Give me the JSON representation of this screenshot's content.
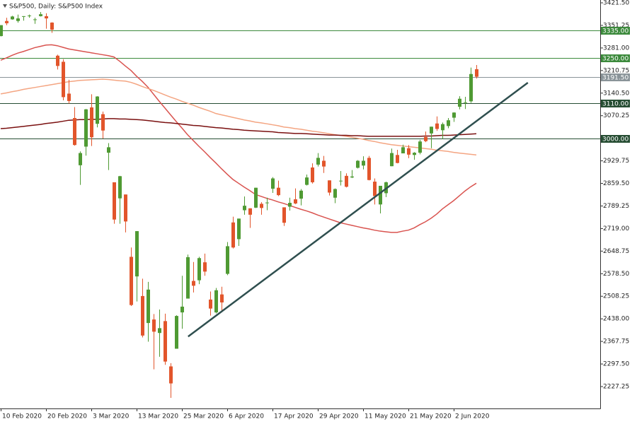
{
  "chart_data": {
    "type": "candlestick",
    "title": "S&P500, Daily:  S&P500 Index",
    "categories": [
      "10 Feb 2020",
      null,
      null,
      null,
      null,
      null,
      null,
      null,
      "20 Feb 2020",
      null,
      null,
      null,
      null,
      null,
      null,
      null,
      "3 Mar 2020",
      null,
      null,
      null,
      null,
      null,
      null,
      null,
      "13 Mar 2020",
      null,
      null,
      null,
      null,
      null,
      null,
      null,
      "25 Mar 2020",
      null,
      null,
      null,
      null,
      null,
      null,
      null,
      "6 Apr 2020",
      null,
      null,
      null,
      null,
      null,
      null,
      null,
      "17 Apr 2020",
      null,
      null,
      null,
      null,
      null,
      null,
      null,
      "29 Apr 2020",
      null,
      null,
      null,
      null,
      null,
      null,
      null,
      "11 May 2020",
      null,
      null,
      null,
      null,
      null,
      null,
      null,
      "21 May 2020",
      null,
      null,
      null,
      null,
      null,
      null,
      null,
      "2 Jun 2020",
      null,
      null,
      null,
      null
    ],
    "open": [
      3318,
      3365,
      3370,
      3365,
      3378,
      3380,
      3370,
      3380,
      3380,
      3360,
      3257,
      3238,
      3139,
      3063,
      2916,
      2974,
      3096,
      3045,
      3075,
      2955,
      2863,
      2813,
      2825,
      2631,
      2570,
      2509,
      2425,
      2436,
      2394,
      2431,
      2290,
      2345,
      2458,
      2501,
      2556,
      2558,
      2614,
      2498,
      2458,
      2514,
      2578,
      2738,
      2686,
      2776,
      2782,
      2784,
      2796,
      2800,
      2843,
      2846,
      2785,
      2787,
      2810,
      2812,
      2855,
      2909,
      2918,
      2930,
      2869,
      2815,
      2868,
      2883,
      2878,
      2908,
      2915,
      2939,
      2865,
      2794,
      2829,
      2913,
      2948,
      2953,
      2969,
      2948,
      2955,
      3004,
      3015,
      3046,
      3025,
      3038,
      3064,
      3098,
      3112,
      3115,
      3215
    ],
    "high": [
      3352,
      3375,
      3381,
      3385,
      3380,
      3385,
      3375,
      3393,
      3389,
      3361,
      3260,
      3246,
      3182,
      3097,
      2959,
      3091,
      3137,
      3131,
      3083,
      2985,
      2863,
      2883,
      2825,
      2660,
      2711,
      2563,
      2553,
      2453,
      2467,
      2454,
      2300,
      2449,
      2572,
      2638,
      2615,
      2631,
      2641,
      2523,
      2534,
      2538,
      2677,
      2756,
      2750,
      2819,
      2782,
      2846,
      2801,
      2815,
      2879,
      2868,
      2785,
      2815,
      2844,
      2842,
      2887,
      2922,
      2954,
      2945,
      2869,
      2844,
      2898,
      2891,
      2901,
      2932,
      2944,
      2945,
      2875,
      2852,
      2865,
      2968,
      2964,
      2980,
      2979,
      2957,
      2995,
      3021,
      3036,
      3068,
      3049,
      3063,
      3081,
      3131,
      3129,
      3220,
      3228
    ],
    "low": [
      3317,
      3352,
      3369,
      3360,
      3366,
      3375,
      3356,
      3379,
      3341,
      3328,
      3214,
      3118,
      3108,
      2977,
      2855,
      2946,
      2976,
      3034,
      2999,
      2901,
      2734,
      2734,
      2707,
      2478,
      2492,
      2380,
      2367,
      2281,
      2320,
      2295,
      2192,
      2345,
      2407,
      2501,
      2520,
      2546,
      2572,
      2448,
      2455,
      2459,
      2574,
      2657,
      2665,
      2762,
      2721,
      2783,
      2762,
      2776,
      2830,
      2820,
      2727,
      2775,
      2795,
      2791,
      2853,
      2859,
      2912,
      2892,
      2822,
      2798,
      2853,
      2847,
      2876,
      2906,
      2903,
      2869,
      2794,
      2766,
      2817,
      2913,
      2922,
      2953,
      2938,
      2933,
      2950,
      2988,
      2969,
      3023,
      2998,
      3031,
      3051,
      3090,
      3091,
      3110,
      3186
    ],
    "close": [
      3352,
      3358,
      3379,
      3373,
      3380,
      3382,
      3370,
      3386,
      3373,
      3338,
      3225,
      3128,
      3116,
      2979,
      2954,
      3090,
      3003,
      3130,
      3024,
      2972,
      2747,
      2882,
      2741,
      2481,
      2711,
      2386,
      2529,
      2398,
      2409,
      2305,
      2237,
      2447,
      2476,
      2630,
      2541,
      2627,
      2585,
      2470,
      2527,
      2489,
      2664,
      2660,
      2750,
      2790,
      2762,
      2846,
      2783,
      2800,
      2875,
      2823,
      2737,
      2799,
      2797,
      2837,
      2878,
      2863,
      2939,
      2912,
      2831,
      2842,
      2868,
      2849,
      2881,
      2930,
      2930,
      2870,
      2820,
      2852,
      2863,
      2954,
      2923,
      2972,
      2949,
      2955,
      2990,
      2991,
      3036,
      3029,
      3044,
      3056,
      3080,
      3123,
      3112,
      3200,
      3191.5
    ],
    "up_color": "#4f9a33",
    "down_color": "#e2552b",
    "moving_averages": [
      {
        "color": "#d9534f",
        "values": [
          3243,
          3250,
          3258,
          3265,
          3270,
          3276,
          3282,
          3286,
          3290,
          3291,
          3288,
          3283,
          3278,
          3275,
          3272,
          3269,
          3266,
          3263,
          3260,
          3257,
          3253,
          3240,
          3225,
          3211,
          3193,
          3177,
          3159,
          3137,
          3115,
          3094,
          3073,
          3052,
          3032,
          3011,
          2993,
          2975,
          2958,
          2940,
          2923,
          2905,
          2888,
          2872,
          2860,
          2848,
          2837,
          2825,
          2819,
          2813,
          2808,
          2802,
          2797,
          2791,
          2785,
          2779,
          2774,
          2768,
          2761,
          2755,
          2749,
          2743,
          2737,
          2733,
          2729,
          2725,
          2721,
          2718,
          2714,
          2711,
          2709,
          2707,
          2707,
          2711,
          2714,
          2721,
          2731,
          2740,
          2751,
          2764,
          2780,
          2793,
          2806,
          2821,
          2836,
          2849,
          2860
        ]
      },
      {
        "color": "#f4a582",
        "values": [
          3138,
          3141,
          3145,
          3148,
          3152,
          3155,
          3158,
          3161,
          3164,
          3167,
          3170,
          3173,
          3176,
          3178,
          3180,
          3181,
          3182,
          3183,
          3184,
          3183,
          3181,
          3179,
          3178,
          3174,
          3168,
          3161,
          3155,
          3149,
          3142,
          3135,
          3128,
          3122,
          3115,
          3109,
          3103,
          3096,
          3090,
          3084,
          3077,
          3073,
          3069,
          3065,
          3061,
          3057,
          3054,
          3050,
          3048,
          3045,
          3042,
          3039,
          3035,
          3033,
          3030,
          3028,
          3025,
          3022,
          3020,
          3017,
          3014,
          3011,
          3009,
          3006,
          3003,
          3000,
          2997,
          2993,
          2990,
          2986,
          2983,
          2980,
          2978,
          2976,
          2974,
          2972,
          2970,
          2968,
          2966,
          2963,
          2961,
          2959,
          2956,
          2954,
          2952,
          2950,
          2948
        ]
      },
      {
        "color": "#7a1010",
        "values": [
          3030,
          3031,
          3033,
          3035,
          3037,
          3039,
          3041,
          3043,
          3046,
          3048,
          3050,
          3053,
          3056,
          3057,
          3058,
          3058,
          3059,
          3059,
          3060,
          3061,
          3061,
          3060,
          3060,
          3059,
          3058,
          3057,
          3055,
          3053,
          3051,
          3049,
          3048,
          3046,
          3044,
          3042,
          3040,
          3039,
          3037,
          3035,
          3033,
          3032,
          3030,
          3028,
          3027,
          3025,
          3024,
          3023,
          3022,
          3021,
          3020,
          3018,
          3017,
          3016,
          3015,
          3015,
          3014,
          3013,
          3012,
          3011,
          3010,
          3010,
          3009,
          3009,
          3008,
          3008,
          3007,
          3006,
          3006,
          3006,
          3006,
          3006,
          3006,
          3006,
          3006,
          3006,
          3006,
          3007,
          3007,
          3008,
          3009,
          3009,
          3010,
          3011,
          3012,
          3013,
          3014
        ]
      }
    ],
    "trendline": {
      "x": [
        33.1,
        93.1
      ],
      "values": [
        2383,
        3173
      ],
      "color": "#2f4f4f"
    },
    "levels": [
      {
        "value": 3335,
        "label": "3335.00",
        "color": "#3c8a3c"
      },
      {
        "value": 3250,
        "label": "3250.00",
        "color": "#3c8a3c"
      },
      {
        "value": 3191.5,
        "label": "3191.50",
        "color": "#8a9499"
      },
      {
        "value": 3110,
        "label": "3110.00",
        "color": "#264d33"
      },
      {
        "value": 3000,
        "label": "3000.00",
        "color": "#264d33"
      }
    ],
    "ylim": [
      2159.1,
      3430.3
    ],
    "yticks": [
      {
        "value": 3421.5,
        "label": "3421.50"
      },
      {
        "value": 3351.25,
        "label": "3351.25"
      },
      {
        "value": 3281,
        "label": "3281.00"
      },
      {
        "value": 3210.75,
        "label": "3210.75"
      },
      {
        "value": 3140.5,
        "label": "3140.50"
      },
      {
        "value": 3070.25,
        "label": "3070.25"
      },
      {
        "value": 2929.75,
        "label": "2929.75"
      },
      {
        "value": 2859.5,
        "label": "2859.50"
      },
      {
        "value": 2789.25,
        "label": "2789.25"
      },
      {
        "value": 2719,
        "label": "2719.00"
      },
      {
        "value": 2648.75,
        "label": "2648.75"
      },
      {
        "value": 2578.5,
        "label": "2578.50"
      },
      {
        "value": 2508.25,
        "label": "2508.25"
      },
      {
        "value": 2438,
        "label": "2438.00"
      },
      {
        "value": 2367.75,
        "label": "2367.75"
      },
      {
        "value": 2297.5,
        "label": "2297.50"
      },
      {
        "value": 2227.25,
        "label": "2227.25"
      }
    ]
  }
}
